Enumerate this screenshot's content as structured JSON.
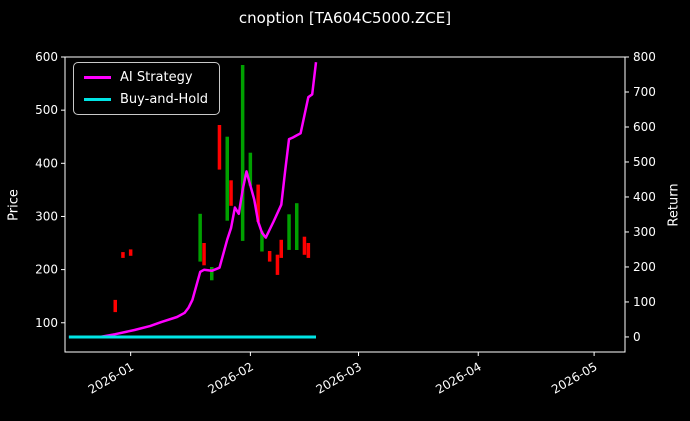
{
  "chart_data": {
    "type": "line",
    "title": "cnoption [TA604C5000.ZCE]",
    "xlabel": "",
    "ylabel_left": "Price",
    "ylabel_right": "Return",
    "background": "#000000",
    "text_color": "#ffffff",
    "grid": false,
    "legend_position": "upper-left",
    "x_range": [
      "2025-12-15",
      "2026-05-09"
    ],
    "price_range": [
      45,
      600
    ],
    "return_range": [
      -43,
      800
    ],
    "price_ticks": [
      100,
      200,
      300,
      400,
      500,
      600
    ],
    "return_ticks": [
      0,
      100,
      200,
      300,
      400,
      500,
      600,
      700,
      800
    ],
    "x_ticks": [
      {
        "date": "2026-01-01",
        "label": "2026-01"
      },
      {
        "date": "2026-02-01",
        "label": "2026-02"
      },
      {
        "date": "2026-03-01",
        "label": "2026-03"
      },
      {
        "date": "2026-04-01",
        "label": "2026-04"
      },
      {
        "date": "2026-05-01",
        "label": "2026-05"
      }
    ],
    "series": [
      {
        "name": "AI Strategy",
        "color": "#ff00ff",
        "axis": "return",
        "width": 2.5,
        "points": [
          [
            "2025-12-16",
            0
          ],
          [
            "2025-12-24",
            0
          ],
          [
            "2025-12-28",
            8
          ],
          [
            "2026-01-02",
            20
          ],
          [
            "2026-01-06",
            31
          ],
          [
            "2026-01-09",
            43
          ],
          [
            "2026-01-13",
            57
          ],
          [
            "2026-01-15",
            69
          ],
          [
            "2026-01-16",
            84
          ],
          [
            "2026-01-17",
            106
          ],
          [
            "2026-01-19",
            186
          ],
          [
            "2026-01-20",
            192
          ],
          [
            "2026-01-22",
            189
          ],
          [
            "2026-01-24",
            198
          ],
          [
            "2026-01-26",
            278
          ],
          [
            "2026-01-27",
            312
          ],
          [
            "2026-01-28",
            370
          ],
          [
            "2026-01-29",
            352
          ],
          [
            "2026-01-30",
            421
          ],
          [
            "2026-01-31",
            473
          ],
          [
            "2026-02-02",
            393
          ],
          [
            "2026-02-03",
            330
          ],
          [
            "2026-02-04",
            298
          ],
          [
            "2026-02-05",
            284
          ],
          [
            "2026-02-06",
            307
          ],
          [
            "2026-02-07",
            330
          ],
          [
            "2026-02-09",
            378
          ],
          [
            "2026-02-10",
            473
          ],
          [
            "2026-02-11",
            565
          ],
          [
            "2026-02-12",
            570
          ],
          [
            "2026-02-13",
            576
          ],
          [
            "2026-02-14",
            582
          ],
          [
            "2026-02-16",
            685
          ],
          [
            "2026-02-17",
            693
          ],
          [
            "2026-02-18",
            785
          ]
        ]
      },
      {
        "name": "Buy-and-Hold",
        "color": "#00e5e5",
        "axis": "return",
        "width": 3,
        "points": [
          [
            "2025-12-16",
            0
          ],
          [
            "2026-02-18",
            0
          ]
        ]
      }
    ],
    "price_bars": {
      "up_color": "#00a000",
      "down_color": "#ff0000",
      "bar_width": 3.5,
      "bars": [
        [
          "2025-12-28",
          120,
          143,
          "down"
        ],
        [
          "2025-12-30",
          222,
          233,
          "down"
        ],
        [
          "2026-01-01",
          226,
          238,
          "down"
        ],
        [
          "2026-01-19",
          215,
          305,
          "up"
        ],
        [
          "2026-01-20",
          208,
          250,
          "down"
        ],
        [
          "2026-01-22",
          180,
          205,
          "up"
        ],
        [
          "2026-01-24",
          388,
          472,
          "down"
        ],
        [
          "2026-01-26",
          292,
          450,
          "up"
        ],
        [
          "2026-01-27",
          320,
          368,
          "down"
        ],
        [
          "2026-01-30",
          254,
          585,
          "up"
        ],
        [
          "2026-02-01",
          358,
          420,
          "up"
        ],
        [
          "2026-02-03",
          290,
          360,
          "down"
        ],
        [
          "2026-02-04",
          234,
          272,
          "up"
        ],
        [
          "2026-02-06",
          215,
          235,
          "down"
        ],
        [
          "2026-02-08",
          190,
          228,
          "down"
        ],
        [
          "2026-02-09",
          222,
          256,
          "down"
        ],
        [
          "2026-02-11",
          237,
          304,
          "up"
        ],
        [
          "2026-02-13",
          237,
          325,
          "up"
        ],
        [
          "2026-02-15",
          228,
          262,
          "down"
        ],
        [
          "2026-02-16",
          222,
          250,
          "down"
        ]
      ]
    }
  }
}
